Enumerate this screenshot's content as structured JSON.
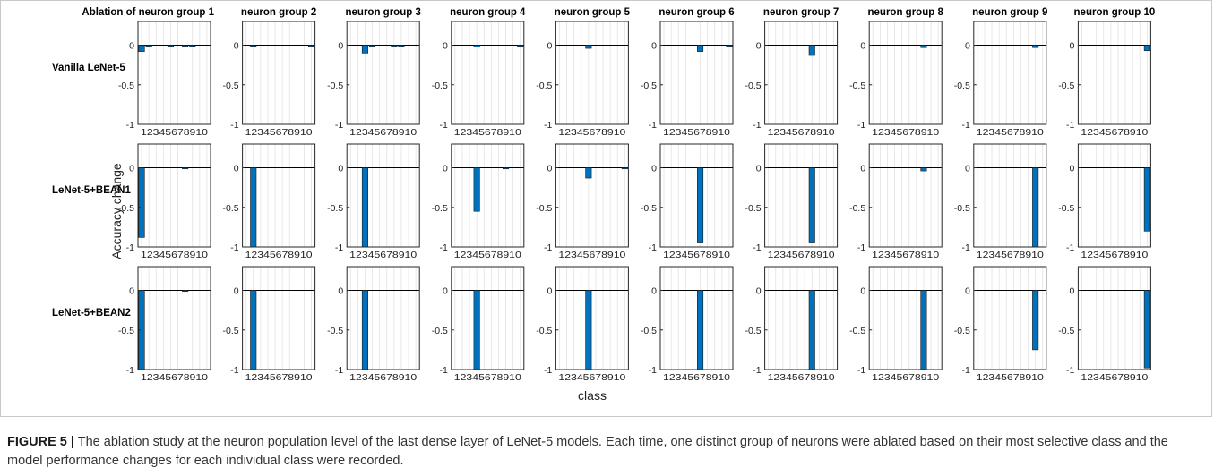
{
  "figure": {
    "caption_label": "FIGURE 5 |",
    "caption_text": " The ablation study at the neuron population level of the last dense layer of LeNet-5 models. Each time, one distinct group of neurons were ablated based on their most selective class and the model performance changes for each individual class were recorded."
  },
  "chart_data": {
    "type": "bar",
    "layout": "grid",
    "xlabel": "class",
    "ylabel": "Accuracy change",
    "ylim": [
      -1,
      0.3
    ],
    "yticks": [
      0,
      -0.5,
      -1
    ],
    "ytick_labels": [
      "0",
      "-0.5",
      "-1"
    ],
    "categories": [
      "1",
      "2",
      "3",
      "4",
      "5",
      "6",
      "7",
      "8",
      "9",
      "10"
    ],
    "xtick_text": "12345678910",
    "grid": true,
    "bar_color": "#0072BD",
    "columns": [
      "Ablation of neuron group 1",
      "neuron group 2",
      "neuron group 3",
      "neuron group 4",
      "neuron group 5",
      "neuron group 6",
      "neuron group 7",
      "neuron group 8",
      "neuron group 9",
      "neuron group 10"
    ],
    "rows": [
      {
        "name": "Vanilla LeNet-5",
        "panels": [
          [
            -0.08,
            -0.01,
            0,
            0,
            -0.01,
            0,
            -0.01,
            -0.01,
            0,
            0
          ],
          [
            0,
            -0.01,
            0,
            0,
            0,
            0,
            0,
            0,
            0,
            -0.01
          ],
          [
            0,
            0,
            -0.1,
            -0.01,
            0,
            0,
            -0.01,
            -0.01,
            0,
            0
          ],
          [
            0,
            0,
            0,
            -0.02,
            0,
            0,
            0,
            0,
            0,
            -0.01
          ],
          [
            0,
            0,
            0,
            0,
            -0.04,
            0,
            0,
            0,
            0,
            0
          ],
          [
            0,
            0,
            0,
            0,
            0,
            -0.08,
            0,
            0,
            0,
            -0.01
          ],
          [
            0,
            0,
            0,
            0,
            0,
            0,
            -0.13,
            0,
            0,
            0
          ],
          [
            0,
            0,
            0,
            0,
            0,
            0,
            0,
            -0.03,
            0,
            0
          ],
          [
            0,
            0,
            0,
            0,
            0,
            0,
            0,
            0,
            -0.03,
            0
          ],
          [
            0,
            0,
            0,
            0,
            0,
            0,
            0,
            0,
            0,
            -0.07
          ]
        ]
      },
      {
        "name": "LeNet-5+BEAN1",
        "panels": [
          [
            -0.88,
            0,
            0,
            0,
            0,
            0,
            -0.01,
            0,
            0,
            0
          ],
          [
            0,
            -1,
            0,
            0,
            0,
            0,
            0,
            0,
            0,
            0
          ],
          [
            0,
            0,
            -1,
            0,
            0,
            0,
            0,
            0,
            0,
            0
          ],
          [
            0,
            0,
            0,
            -0.55,
            0,
            0,
            0,
            -0.01,
            0,
            0
          ],
          [
            0,
            0,
            0,
            0,
            -0.13,
            0,
            0,
            0,
            0,
            -0.01
          ],
          [
            0,
            0,
            0,
            0,
            0,
            -0.95,
            0,
            0,
            0,
            0
          ],
          [
            0,
            0,
            0,
            0,
            0,
            0,
            -0.95,
            0,
            0,
            0
          ],
          [
            0,
            0,
            0,
            0,
            0,
            0,
            0,
            -0.04,
            0,
            0
          ],
          [
            0,
            0,
            0,
            0,
            0,
            0,
            0,
            0,
            -1,
            0
          ],
          [
            0,
            0,
            0,
            0,
            0,
            0,
            0,
            0,
            0,
            -0.8
          ]
        ]
      },
      {
        "name": "LeNet-5+BEAN2",
        "panels": [
          [
            -1,
            0,
            0,
            0,
            0,
            0,
            -0.01,
            0,
            0,
            0
          ],
          [
            0,
            -1,
            0,
            0,
            0,
            0,
            0,
            0,
            0,
            0
          ],
          [
            0,
            0,
            -1,
            0,
            0,
            0,
            0,
            0,
            0,
            0
          ],
          [
            0,
            0,
            0,
            -1,
            0,
            0,
            0,
            0,
            0,
            0
          ],
          [
            0,
            0,
            0,
            0,
            -1,
            0,
            0,
            0,
            0,
            0
          ],
          [
            0,
            0,
            0,
            0,
            0,
            -1,
            0,
            0,
            0,
            0
          ],
          [
            0,
            0,
            0,
            0,
            0,
            0,
            -1,
            0,
            0,
            0
          ],
          [
            0,
            0,
            0,
            0,
            0,
            0,
            0,
            -1,
            0,
            0
          ],
          [
            0,
            0,
            0,
            0,
            0,
            0,
            0,
            0,
            -0.75,
            0
          ],
          [
            0,
            0,
            0,
            0,
            0,
            0,
            0,
            0,
            0,
            -0.98
          ]
        ]
      }
    ]
  }
}
